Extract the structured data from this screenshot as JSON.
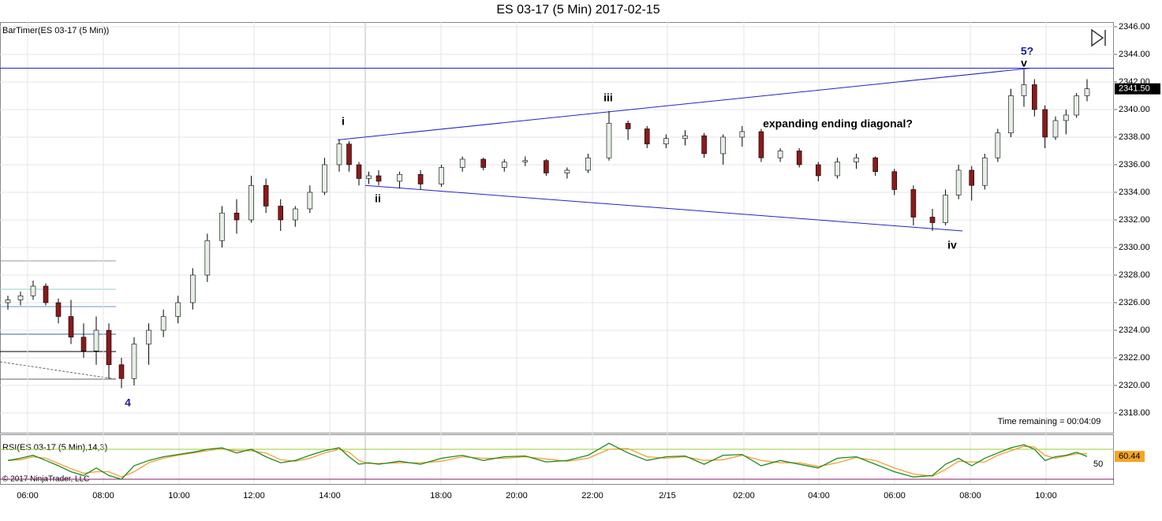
{
  "chart_data": [
    {
      "type": "candlestick",
      "title": "ES 03-17 (5 Min)  2017-02-15",
      "indicator_label": "BarTimer(ES 03-17 (5 Min))",
      "timer_text": "Time remaining = 00:04:09",
      "up_color": "#e6efe6",
      "down_color": "#8b1a1a",
      "line_color": "#2222cc",
      "ylim": [
        2316.63,
        2346.34
      ],
      "yticks": [
        {
          "value": 2318,
          "label": "2318.00"
        },
        {
          "value": 2320,
          "label": "2320.00"
        },
        {
          "value": 2322,
          "label": "2322.00"
        },
        {
          "value": 2324,
          "label": "2324.00"
        },
        {
          "value": 2326,
          "label": "2326.00"
        },
        {
          "value": 2328,
          "label": "2328.00"
        },
        {
          "value": 2330,
          "label": "2330.00"
        },
        {
          "value": 2332,
          "label": "2332.00"
        },
        {
          "value": 2334,
          "label": "2334.00"
        },
        {
          "value": 2336,
          "label": "2336.00"
        },
        {
          "value": 2338,
          "label": "2338.00"
        },
        {
          "value": 2340,
          "label": "2340.00"
        },
        {
          "value": 2342,
          "label": "2342.00"
        },
        {
          "value": 2344,
          "label": "2344.00"
        },
        {
          "value": 2346,
          "label": "2346.00"
        }
      ],
      "time_labels": [
        "06:00",
        "08:00",
        "10:00",
        "12:00",
        "14:00",
        "18:00",
        "20:00",
        "22:00",
        "2/15",
        "02:00",
        "04:00",
        "06:00",
        "08:00",
        "10:00"
      ],
      "grid": true,
      "last_price": {
        "value": 2341.5,
        "label": "2341.50"
      },
      "hline": 2343.0,
      "trendlines": [
        [
          2337.8,
          2343.0
        ],
        [
          2334.5,
          2331.2
        ]
      ],
      "annotations": [
        "i",
        "ii",
        "iii",
        "iv",
        "v",
        "5?",
        "4",
        "expanding ending diagonal?"
      ],
      "candles": [
        [
          2326,
          2326.5,
          2325.5,
          2326.2
        ],
        [
          2326.2,
          2326.8,
          2325.8,
          2326.5
        ],
        [
          2326.5,
          2327.6,
          2326.2,
          2327.2
        ],
        [
          2327.2,
          2327.4,
          2325.8,
          2326
        ],
        [
          2326,
          2326.3,
          2324.5,
          2325
        ],
        [
          2325,
          2326.2,
          2323,
          2323.5
        ],
        [
          2323.5,
          2324.5,
          2322,
          2322.5
        ],
        [
          2322.5,
          2325,
          2321.5,
          2324
        ],
        [
          2324,
          2324.5,
          2320.5,
          2321.5
        ],
        [
          2321.5,
          2322,
          2319.8,
          2320.5
        ],
        [
          2320.5,
          2323.5,
          2320,
          2323
        ],
        [
          2323,
          2324.5,
          2321.5,
          2324
        ],
        [
          2324,
          2325.5,
          2323.5,
          2325
        ],
        [
          2325,
          2326.5,
          2324.5,
          2326
        ],
        [
          2326,
          2328.5,
          2325.5,
          2328
        ],
        [
          2328,
          2331,
          2327.5,
          2330.5
        ],
        [
          2330.5,
          2333,
          2330,
          2332.5
        ],
        [
          2332.5,
          2333.5,
          2331,
          2332
        ],
        [
          2332,
          2335.2,
          2331.8,
          2334.5
        ],
        [
          2334.5,
          2335,
          2332.5,
          2333
        ],
        [
          2333,
          2333.5,
          2331.2,
          2332
        ],
        [
          2332,
          2333,
          2331.5,
          2332.8
        ],
        [
          2332.8,
          2334.5,
          2332.5,
          2334
        ],
        [
          2334,
          2336.5,
          2333.8,
          2336
        ],
        [
          2336,
          2337.8,
          2335.5,
          2337.5
        ],
        [
          2337.5,
          2337.7,
          2335.5,
          2336
        ],
        [
          2336,
          2336.2,
          2334.5,
          2335
        ],
        [
          2335,
          2335.5,
          2334.6,
          2335.2
        ],
        [
          2335.2,
          2335.6,
          2334.5,
          2334.8
        ],
        [
          2334.8,
          2335.5,
          2334.3,
          2335.3
        ],
        [
          2335.3,
          2335.6,
          2334.2,
          2334.6
        ],
        [
          2334.6,
          2336,
          2334.4,
          2335.8
        ],
        [
          2335.8,
          2336.6,
          2335.5,
          2336.4
        ],
        [
          2336.4,
          2336.5,
          2335.6,
          2335.8
        ],
        [
          2335.8,
          2336.4,
          2335.5,
          2336.2
        ],
        [
          2336.2,
          2336.6,
          2335.9,
          2336.3
        ],
        [
          2336.3,
          2336.4,
          2335.2,
          2335.4
        ],
        [
          2335.4,
          2335.8,
          2335,
          2335.6
        ],
        [
          2335.6,
          2336.8,
          2335.4,
          2336.5
        ],
        [
          2336.5,
          2339.9,
          2336.3,
          2339
        ],
        [
          2339,
          2339.2,
          2337.8,
          2338.6
        ],
        [
          2338.6,
          2338.8,
          2337.2,
          2337.5
        ],
        [
          2337.5,
          2338.2,
          2337.2,
          2337.9
        ],
        [
          2337.9,
          2338.5,
          2337.4,
          2338.1
        ],
        [
          2338.1,
          2338.3,
          2336.5,
          2336.8
        ],
        [
          2336.8,
          2338.2,
          2336,
          2338
        ],
        [
          2338,
          2338.8,
          2337.3,
          2338.4
        ],
        [
          2338.4,
          2338.6,
          2336.2,
          2336.5
        ],
        [
          2336.5,
          2337.2,
          2336.2,
          2337
        ],
        [
          2337,
          2337.2,
          2335.8,
          2336
        ],
        [
          2336,
          2336.2,
          2334.8,
          2335.2
        ],
        [
          2335.2,
          2336.5,
          2335,
          2336.2
        ],
        [
          2336.2,
          2336.8,
          2335.7,
          2336.5
        ],
        [
          2336.5,
          2336.6,
          2335.2,
          2335.5
        ],
        [
          2335.5,
          2335.7,
          2333.8,
          2334.2
        ],
        [
          2334.2,
          2334.5,
          2331.6,
          2332.2
        ],
        [
          2332.2,
          2332.8,
          2331.2,
          2331.8
        ],
        [
          2331.8,
          2334.2,
          2331.6,
          2333.8
        ],
        [
          2333.8,
          2336,
          2333.5,
          2335.6
        ],
        [
          2335.6,
          2335.9,
          2333.4,
          2334.5
        ],
        [
          2334.5,
          2336.8,
          2334.2,
          2336.5
        ],
        [
          2336.5,
          2338.6,
          2336.2,
          2338.3
        ],
        [
          2338.3,
          2341.5,
          2338,
          2341
        ],
        [
          2341,
          2342.9,
          2340.2,
          2341.8
        ],
        [
          2341.8,
          2342.2,
          2339.5,
          2340
        ],
        [
          2340,
          2340.3,
          2337.2,
          2338
        ],
        [
          2338,
          2339.5,
          2337.8,
          2339.2
        ],
        [
          2339.2,
          2340,
          2338.2,
          2339.6
        ],
        [
          2339.6,
          2341.2,
          2339.4,
          2341
        ],
        [
          2341,
          2342.2,
          2340.6,
          2341.5
        ]
      ]
    },
    {
      "type": "line",
      "title": "RSI(ES 03-17 (5 Min),14,3)",
      "copyright": "© 2017 NinjaTrader, LLC",
      "ylim": [
        23.7,
        88.9
      ],
      "yticks": [
        50
      ],
      "levels": [
        70,
        30
      ],
      "level_colors": [
        "#9acd32",
        "#8b1a6b"
      ],
      "last_value": 60.44,
      "last_color": "#f5a623",
      "series": [
        {
          "color": "#1f8a1f",
          "values": [
            55,
            58,
            62,
            55,
            48,
            40,
            35,
            45,
            35,
            30,
            48,
            55,
            60,
            63,
            66,
            70,
            72,
            65,
            70,
            60,
            52,
            55,
            62,
            68,
            72,
            60,
            50,
            52,
            50,
            54,
            50,
            58,
            62,
            55,
            60,
            61,
            53,
            55,
            62,
            78,
            65,
            55,
            60,
            61,
            50,
            62,
            63,
            48,
            55,
            50,
            45,
            58,
            60,
            50,
            40,
            33,
            35,
            50,
            58,
            48,
            58,
            65,
            72,
            76,
            70,
            55,
            60,
            62,
            66,
            60.44
          ]
        },
        {
          "color": "#f0a030",
          "values": [
            55,
            56,
            60,
            58,
            51,
            44,
            38,
            40,
            40,
            33,
            40,
            52,
            58,
            62,
            65,
            68,
            71,
            68,
            68,
            65,
            56,
            54,
            58,
            65,
            70,
            66,
            55,
            51,
            51,
            52,
            52,
            54,
            60,
            58,
            58,
            60,
            57,
            54,
            58,
            70,
            71,
            60,
            58,
            60,
            55,
            56,
            62,
            55,
            52,
            52,
            47,
            52,
            59,
            55,
            45,
            37,
            34,
            43,
            54,
            53,
            53,
            62,
            68,
            74,
            73,
            62,
            58,
            61,
            64,
            64
          ]
        }
      ]
    }
  ]
}
